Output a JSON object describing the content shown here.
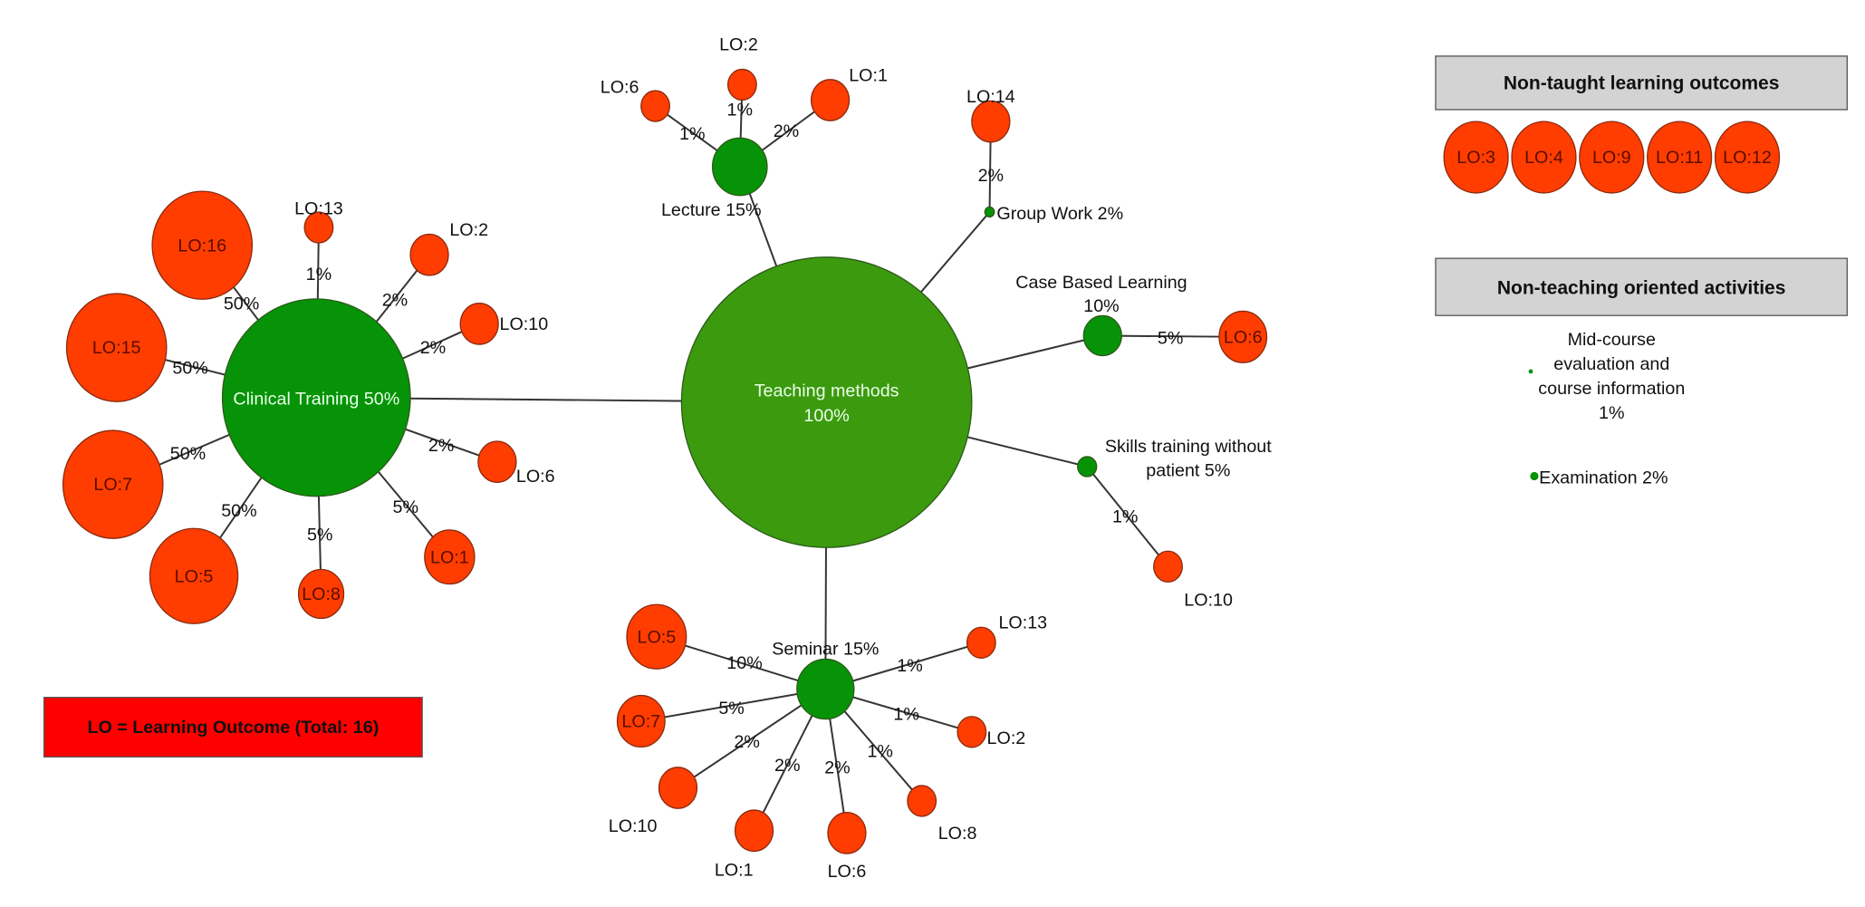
{
  "colors": {
    "outcome": "#ff3d00",
    "outcome_stroke": "#8a2a10",
    "method": "#079307",
    "hub": "#3c9a0e",
    "legend_box": "#ff0000",
    "panel_box": "#d3d3d3"
  },
  "hub": {
    "lines": [
      "Teaching methods",
      "100%"
    ]
  },
  "methods": [
    {
      "id": "clinical",
      "lines": [
        "Clinical Training 50%"
      ],
      "outcomes": [
        {
          "lo": "LO:16",
          "weight": "50%"
        },
        {
          "lo": "LO:15",
          "weight": "50%"
        },
        {
          "lo": "LO:7",
          "weight": "50%"
        },
        {
          "lo": "LO:5",
          "weight": "50%"
        },
        {
          "lo": "LO:8",
          "weight": "5%"
        },
        {
          "lo": "LO:1",
          "weight": "5%"
        },
        {
          "lo": "LO:6",
          "weight": "2%"
        },
        {
          "lo": "LO:10",
          "weight": "2%"
        },
        {
          "lo": "LO:2",
          "weight": "2%"
        },
        {
          "lo": "LO:13",
          "weight": "1%"
        }
      ]
    },
    {
      "id": "lecture",
      "lines": [
        "Lecture 15%"
      ],
      "outcomes": [
        {
          "lo": "LO:6",
          "weight": "1%"
        },
        {
          "lo": "LO:2",
          "weight": "1%"
        },
        {
          "lo": "LO:1",
          "weight": "2%"
        }
      ]
    },
    {
      "id": "group-work",
      "lines": [
        "Group Work 2%"
      ],
      "outcomes": [
        {
          "lo": "LO:14",
          "weight": "2%"
        }
      ]
    },
    {
      "id": "case-based",
      "lines": [
        "Case Based Learning",
        "10%"
      ],
      "outcomes": [
        {
          "lo": "LO:6",
          "weight": "5%"
        }
      ]
    },
    {
      "id": "skills",
      "lines": [
        "Skills training without",
        "patient 5%"
      ],
      "outcomes": [
        {
          "lo": "LO:10",
          "weight": "1%"
        }
      ]
    },
    {
      "id": "seminar",
      "lines": [
        "Seminar 15%"
      ],
      "outcomes": [
        {
          "lo": "LO:5",
          "weight": "10%"
        },
        {
          "lo": "LO:7",
          "weight": "5%"
        },
        {
          "lo": "LO:10",
          "weight": "2%"
        },
        {
          "lo": "LO:1",
          "weight": "2%"
        },
        {
          "lo": "LO:6",
          "weight": "2%"
        },
        {
          "lo": "LO:8",
          "weight": "1%"
        },
        {
          "lo": "LO:2",
          "weight": "1%"
        },
        {
          "lo": "LO:13",
          "weight": "1%"
        }
      ]
    }
  ],
  "legend": {
    "text": "LO = Learning Outcome (Total: 16)"
  },
  "non_taught": {
    "title": "Non-taught learning outcomes",
    "items": [
      "LO:3",
      "LO:4",
      "LO:9",
      "LO:11",
      "LO:12"
    ]
  },
  "non_teaching": {
    "title": "Non-teaching oriented activities",
    "items": [
      {
        "lines": [
          "Mid-course",
          "evaluation and",
          "course information",
          "1%"
        ]
      },
      {
        "lines": [
          "Examination 2%"
        ]
      }
    ]
  }
}
